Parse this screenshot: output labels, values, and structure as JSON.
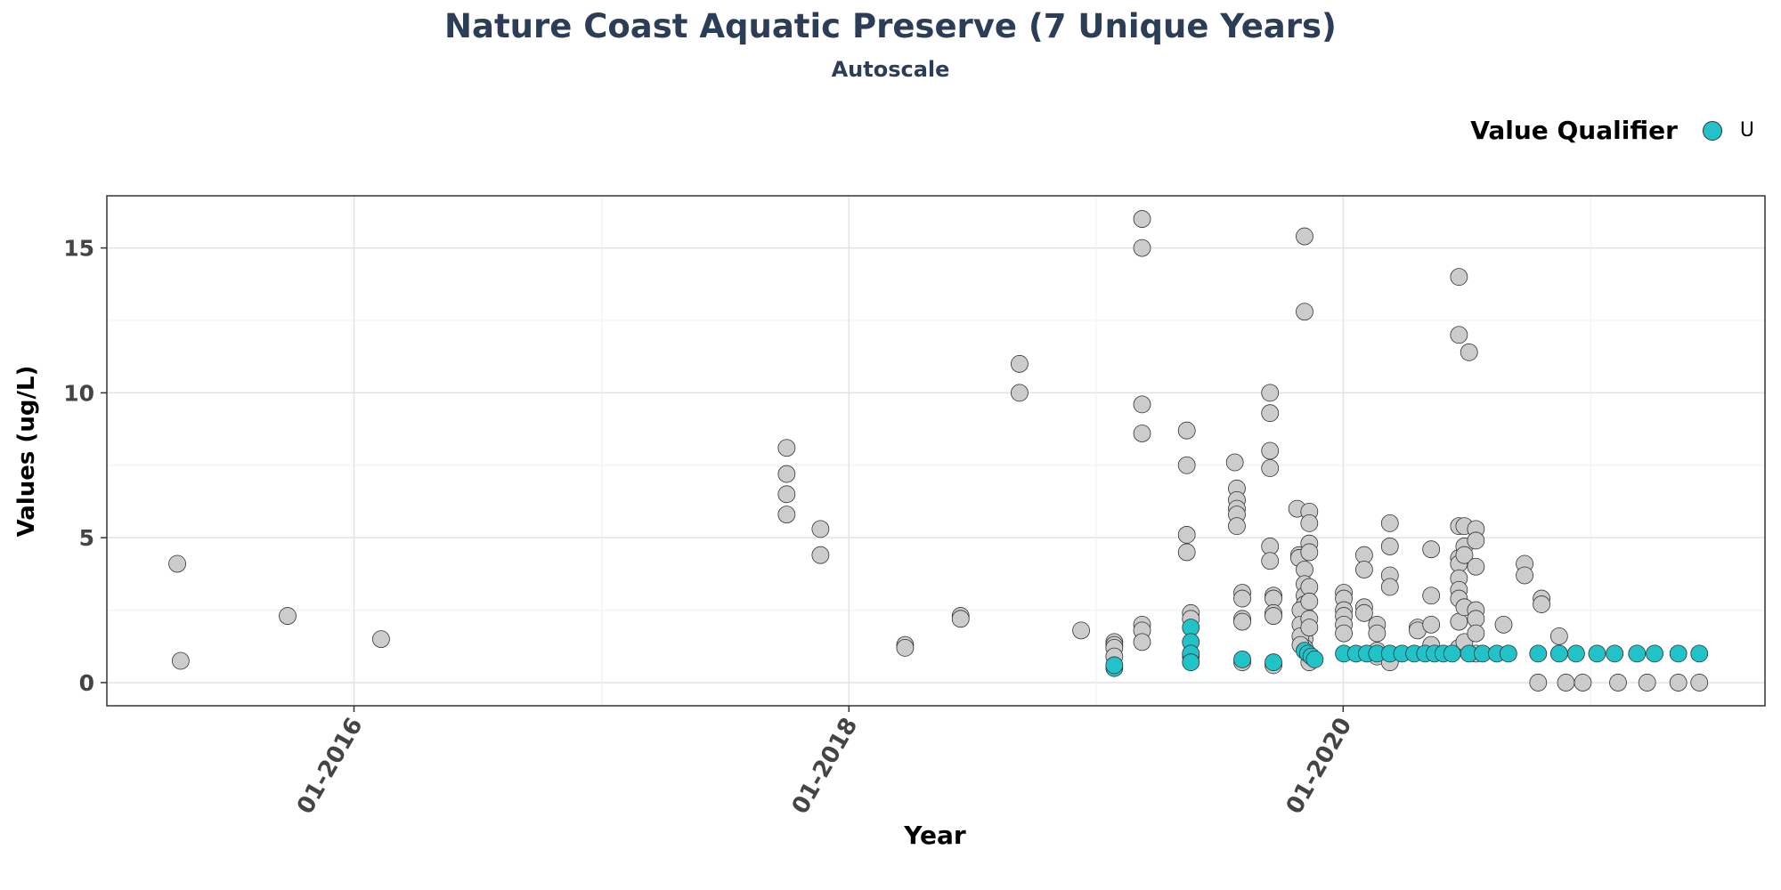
{
  "chart_data": {
    "type": "scatter",
    "title": "Nature Coast Aquatic Preserve (7 Unique Years)",
    "subtitle": "Autoscale",
    "xlabel": "Year",
    "ylabel": "Values (ug/L)",
    "x_ticks": [
      {
        "date": "2016-01-01",
        "label": "01-2016"
      },
      {
        "date": "2018-01-01",
        "label": "01-2018"
      },
      {
        "date": "2020-01-01",
        "label": "01-2020"
      }
    ],
    "y_ticks": [
      0,
      5,
      10,
      15
    ],
    "xlim": [
      "2015-01-01",
      "2021-09-15"
    ],
    "ylim": [
      -0.8,
      16.8
    ],
    "grid": true,
    "legend": {
      "title": "Value Qualifier",
      "placement": "top-right"
    },
    "colors": {
      "qualified": "#22c3c8",
      "plain": "#cccccc",
      "outline": "#333333"
    },
    "series": [
      {
        "name": "U",
        "qualifier": "U",
        "points": [
          [
            "2019-01-28",
            0.5
          ],
          [
            "2019-01-28",
            0.6
          ],
          [
            "2019-05-21",
            1.9
          ],
          [
            "2019-05-21",
            1.4
          ],
          [
            "2019-05-21",
            1.0
          ],
          [
            "2019-05-21",
            0.7
          ],
          [
            "2019-08-05",
            0.8
          ],
          [
            "2019-09-20",
            0.7
          ],
          [
            "2019-11-05",
            1.1
          ],
          [
            "2019-11-10",
            1.0
          ],
          [
            "2019-11-15",
            0.9
          ],
          [
            "2019-11-20",
            0.8
          ],
          [
            "2020-01-02",
            1.0
          ],
          [
            "2020-01-20",
            1.0
          ],
          [
            "2020-02-05",
            1.0
          ],
          [
            "2020-02-20",
            1.0
          ],
          [
            "2020-03-10",
            1.0
          ],
          [
            "2020-03-28",
            1.0
          ],
          [
            "2020-04-15",
            1.0
          ],
          [
            "2020-05-01",
            1.0
          ],
          [
            "2020-05-15",
            1.0
          ],
          [
            "2020-05-28",
            1.0
          ],
          [
            "2020-06-10",
            1.0
          ],
          [
            "2020-07-05",
            1.0
          ],
          [
            "2020-07-25",
            1.0
          ],
          [
            "2020-08-15",
            1.0
          ],
          [
            "2020-09-01",
            1.0
          ],
          [
            "2020-10-15",
            1.0
          ],
          [
            "2020-11-15",
            1.0
          ],
          [
            "2020-12-10",
            1.0
          ],
          [
            "2021-01-10",
            1.0
          ],
          [
            "2021-02-05",
            1.0
          ],
          [
            "2021-03-10",
            1.0
          ],
          [
            "2021-04-05",
            1.0
          ],
          [
            "2021-05-10",
            1.0
          ],
          [
            "2021-06-10",
            1.0
          ]
        ]
      },
      {
        "qualifier": "",
        "points": [
          [
            "2015-04-15",
            4.1
          ],
          [
            "2015-04-20",
            0.75
          ],
          [
            "2015-09-25",
            2.3
          ],
          [
            "2016-02-10",
            1.5
          ],
          [
            "2017-10-01",
            8.1
          ],
          [
            "2017-10-01",
            7.2
          ],
          [
            "2017-10-01",
            6.5
          ],
          [
            "2017-10-01",
            5.8
          ],
          [
            "2017-11-20",
            5.3
          ],
          [
            "2017-11-20",
            4.4
          ],
          [
            "2018-03-25",
            1.3
          ],
          [
            "2018-03-25",
            1.2
          ],
          [
            "2018-06-15",
            2.3
          ],
          [
            "2018-06-15",
            2.2
          ],
          [
            "2018-09-10",
            11.0
          ],
          [
            "2018-09-10",
            10.0
          ],
          [
            "2018-12-10",
            1.8
          ],
          [
            "2019-01-28",
            1.4
          ],
          [
            "2019-01-28",
            1.3
          ],
          [
            "2019-01-28",
            1.2
          ],
          [
            "2019-01-28",
            0.9
          ],
          [
            "2019-03-10",
            16.0
          ],
          [
            "2019-03-10",
            15.0
          ],
          [
            "2019-03-10",
            9.6
          ],
          [
            "2019-03-10",
            8.6
          ],
          [
            "2019-03-10",
            2.0
          ],
          [
            "2019-03-10",
            1.8
          ],
          [
            "2019-03-10",
            1.4
          ],
          [
            "2019-05-15",
            8.7
          ],
          [
            "2019-05-15",
            7.5
          ],
          [
            "2019-05-15",
            5.1
          ],
          [
            "2019-05-15",
            4.5
          ],
          [
            "2019-05-21",
            2.4
          ],
          [
            "2019-05-21",
            2.2
          ],
          [
            "2019-05-21",
            0.9
          ],
          [
            "2019-07-25",
            7.6
          ],
          [
            "2019-07-28",
            6.7
          ],
          [
            "2019-07-28",
            6.3
          ],
          [
            "2019-07-28",
            6.0
          ],
          [
            "2019-07-28",
            5.8
          ],
          [
            "2019-07-28",
            5.4
          ],
          [
            "2019-08-05",
            3.1
          ],
          [
            "2019-08-05",
            2.9
          ],
          [
            "2019-08-05",
            2.2
          ],
          [
            "2019-08-05",
            2.1
          ],
          [
            "2019-08-05",
            0.7
          ],
          [
            "2019-09-15",
            10.0
          ],
          [
            "2019-09-15",
            9.3
          ],
          [
            "2019-09-15",
            8.0
          ],
          [
            "2019-09-15",
            7.4
          ],
          [
            "2019-09-15",
            4.7
          ],
          [
            "2019-09-15",
            4.2
          ],
          [
            "2019-09-20",
            3.0
          ],
          [
            "2019-09-20",
            2.9
          ],
          [
            "2019-09-20",
            2.4
          ],
          [
            "2019-09-20",
            2.3
          ],
          [
            "2019-09-20",
            0.6
          ],
          [
            "2019-10-25",
            6.0
          ],
          [
            "2019-10-28",
            4.4
          ],
          [
            "2019-10-28",
            4.3
          ],
          [
            "2019-11-05",
            15.4
          ],
          [
            "2019-11-05",
            12.8
          ],
          [
            "2019-11-05",
            3.9
          ],
          [
            "2019-11-05",
            3.4
          ],
          [
            "2019-11-05",
            3.0
          ],
          [
            "2019-11-05",
            2.7
          ],
          [
            "2019-11-05",
            2.4
          ],
          [
            "2019-11-05",
            2.1
          ],
          [
            "2019-11-05",
            1.8
          ],
          [
            "2019-11-05",
            1.5
          ],
          [
            "2019-11-05",
            1.2
          ],
          [
            "2019-10-30",
            2.5
          ],
          [
            "2019-10-30",
            2.0
          ],
          [
            "2019-10-30",
            1.6
          ],
          [
            "2019-10-30",
            1.3
          ],
          [
            "2019-11-12",
            5.9
          ],
          [
            "2019-11-12",
            5.5
          ],
          [
            "2019-11-12",
            4.8
          ],
          [
            "2019-11-12",
            4.5
          ],
          [
            "2019-11-12",
            3.3
          ],
          [
            "2019-11-12",
            2.8
          ],
          [
            "2019-11-12",
            2.2
          ],
          [
            "2019-11-12",
            1.9
          ],
          [
            "2019-11-12",
            0.7
          ],
          [
            "2020-01-02",
            3.1
          ],
          [
            "2020-01-02",
            2.9
          ],
          [
            "2020-01-02",
            2.5
          ],
          [
            "2020-01-02",
            2.3
          ],
          [
            "2020-01-02",
            2.0
          ],
          [
            "2020-01-02",
            1.7
          ],
          [
            "2020-02-01",
            4.4
          ],
          [
            "2020-02-01",
            3.9
          ],
          [
            "2020-02-01",
            2.6
          ],
          [
            "2020-02-01",
            2.4
          ],
          [
            "2020-02-20",
            2.0
          ],
          [
            "2020-02-20",
            1.7
          ],
          [
            "2020-02-20",
            1.1
          ],
          [
            "2020-02-20",
            0.9
          ],
          [
            "2020-03-10",
            5.5
          ],
          [
            "2020-03-10",
            4.7
          ],
          [
            "2020-03-10",
            3.7
          ],
          [
            "2020-03-10",
            3.3
          ],
          [
            "2020-03-10",
            0.9
          ],
          [
            "2020-03-10",
            0.7
          ],
          [
            "2020-04-20",
            1.9
          ],
          [
            "2020-04-20",
            1.8
          ],
          [
            "2020-05-10",
            4.6
          ],
          [
            "2020-05-10",
            3.0
          ],
          [
            "2020-05-10",
            2.0
          ],
          [
            "2020-05-10",
            1.3
          ],
          [
            "2020-06-20",
            14.0
          ],
          [
            "2020-06-20",
            12.0
          ],
          [
            "2020-06-20",
            5.4
          ],
          [
            "2020-06-20",
            4.3
          ],
          [
            "2020-06-20",
            4.1
          ],
          [
            "2020-06-20",
            3.6
          ],
          [
            "2020-06-20",
            3.2
          ],
          [
            "2020-06-20",
            2.9
          ],
          [
            "2020-06-20",
            2.1
          ],
          [
            "2020-06-20",
            1.2
          ],
          [
            "2020-07-05",
            11.4
          ],
          [
            "2020-06-28",
            5.4
          ],
          [
            "2020-06-28",
            4.7
          ],
          [
            "2020-06-28",
            4.4
          ],
          [
            "2020-06-28",
            2.6
          ],
          [
            "2020-06-28",
            1.4
          ],
          [
            "2020-07-15",
            5.3
          ],
          [
            "2020-07-15",
            4.9
          ],
          [
            "2020-07-15",
            4.0
          ],
          [
            "2020-07-15",
            2.5
          ],
          [
            "2020-07-15",
            2.2
          ],
          [
            "2020-07-15",
            1.7
          ],
          [
            "2020-07-15",
            1.0
          ],
          [
            "2020-08-25",
            2.0
          ],
          [
            "2020-09-25",
            4.1
          ],
          [
            "2020-09-25",
            3.7
          ],
          [
            "2020-10-20",
            2.9
          ],
          [
            "2020-10-20",
            2.7
          ],
          [
            "2020-11-15",
            1.6
          ],
          [
            "2020-10-15",
            0.0
          ],
          [
            "2020-11-25",
            0.0
          ],
          [
            "2020-12-20",
            0.0
          ],
          [
            "2021-02-10",
            0.0
          ],
          [
            "2021-03-25",
            0.0
          ],
          [
            "2021-05-10",
            0.0
          ],
          [
            "2021-06-10",
            0.0
          ]
        ]
      }
    ]
  }
}
